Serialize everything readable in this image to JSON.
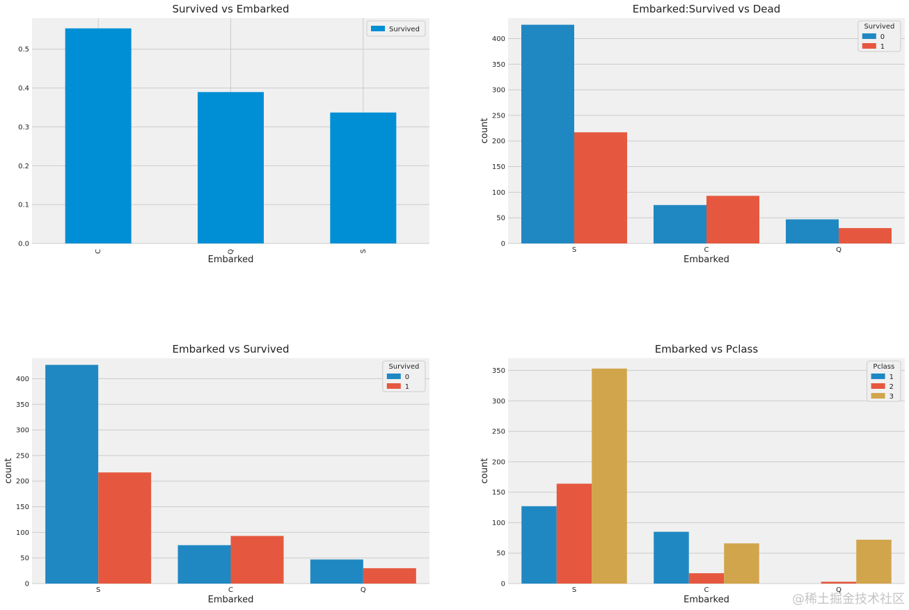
{
  "watermark": "@稀土掘金技术社区",
  "colors": {
    "blue": "#1f88c3",
    "red": "#e5583f",
    "gold": "#d1a54b",
    "pandas_blue": "#008fd5",
    "bg": "#f0f0f0",
    "grid": "#cbcbcb"
  },
  "chart_data": [
    {
      "type": "bar",
      "title": "Survived vs Embarked",
      "xlabel": "Embarked",
      "ylabel": "",
      "categories": [
        "C",
        "Q",
        "S"
      ],
      "ylim": [
        0,
        0.58
      ],
      "yticks": [
        "0.0",
        "0.1",
        "0.2",
        "0.3",
        "0.4",
        "0.5"
      ],
      "xtick_rotation": 90,
      "grid": true,
      "legend": {
        "placement": "top-right",
        "title": ""
      },
      "series": [
        {
          "name": "Survived",
          "values": [
            0.553571,
            0.38961,
            0.336957
          ],
          "color": "#008fd5"
        }
      ]
    },
    {
      "type": "bar",
      "title": "Embarked:Survived vs Dead",
      "xlabel": "Embarked",
      "ylabel": "count",
      "categories": [
        "S",
        "C",
        "Q"
      ],
      "ylim": [
        0,
        440
      ],
      "yticks": [
        "0",
        "50",
        "100",
        "150",
        "200",
        "250",
        "300",
        "350",
        "400"
      ],
      "grid": true,
      "legend": {
        "placement": "top-right",
        "title": "Survived"
      },
      "series": [
        {
          "name": "0",
          "values": [
            427,
            75,
            47
          ],
          "color": "#1f88c3"
        },
        {
          "name": "1",
          "values": [
            217,
            93,
            30
          ],
          "color": "#e5583f"
        }
      ]
    },
    {
      "type": "bar",
      "title": "Embarked vs Survived",
      "xlabel": "Embarked",
      "ylabel": "count",
      "categories": [
        "S",
        "C",
        "Q"
      ],
      "ylim": [
        0,
        440
      ],
      "yticks": [
        "0",
        "50",
        "100",
        "150",
        "200",
        "250",
        "300",
        "350",
        "400"
      ],
      "grid": true,
      "legend": {
        "placement": "top-right",
        "title": "Survived"
      },
      "series": [
        {
          "name": "0",
          "values": [
            427,
            75,
            47
          ],
          "color": "#1f88c3"
        },
        {
          "name": "1",
          "values": [
            217,
            93,
            30
          ],
          "color": "#e5583f"
        }
      ]
    },
    {
      "type": "bar",
      "title": "Embarked vs Pclass",
      "xlabel": "Embarked",
      "ylabel": "count",
      "categories": [
        "S",
        "C",
        "Q"
      ],
      "ylim": [
        0,
        370
      ],
      "yticks": [
        "0",
        "50",
        "100",
        "150",
        "200",
        "250",
        "300",
        "350"
      ],
      "grid": true,
      "legend": {
        "placement": "top-right",
        "title": "Pclass"
      },
      "series": [
        {
          "name": "1",
          "values": [
            127,
            85,
            0
          ],
          "color": "#1f88c3"
        },
        {
          "name": "2",
          "values": [
            164,
            17,
            3
          ],
          "color": "#e5583f"
        },
        {
          "name": "3",
          "values": [
            353,
            66,
            72
          ],
          "color": "#d1a54b"
        }
      ]
    }
  ]
}
